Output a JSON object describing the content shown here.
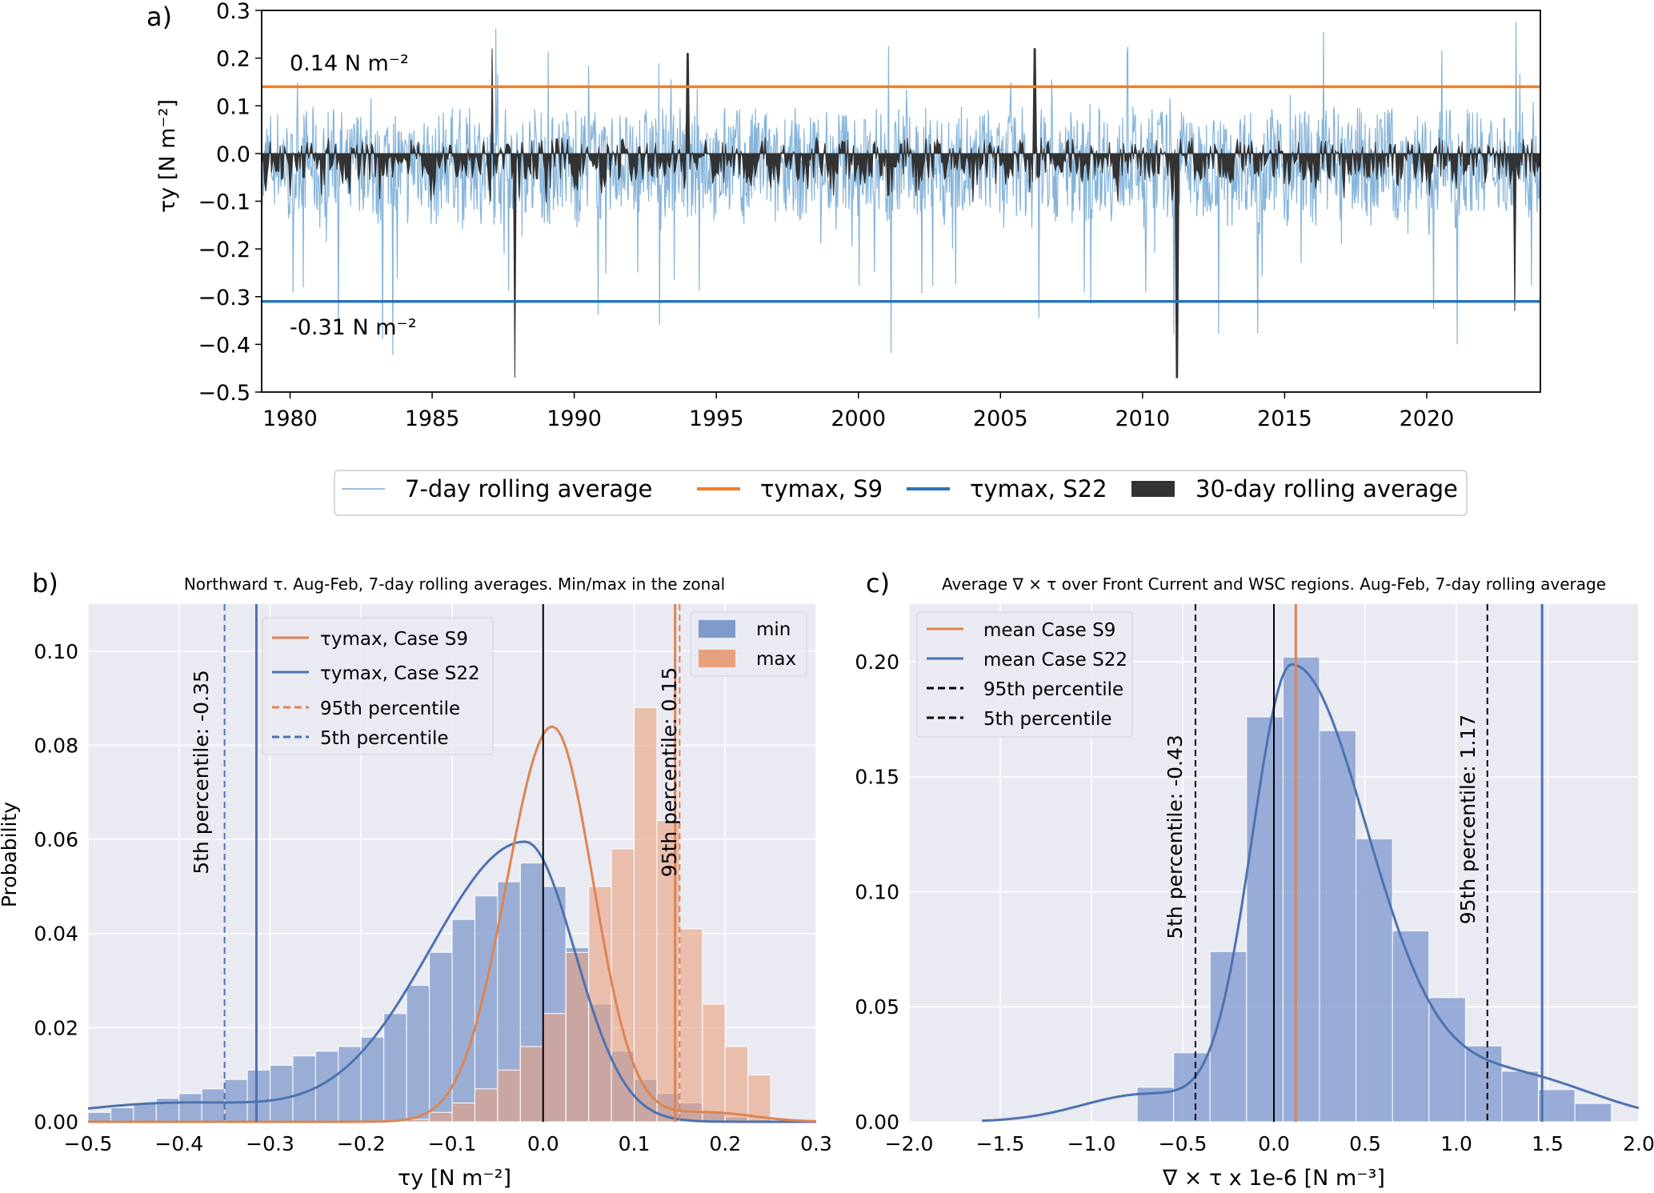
{
  "panel_labels": {
    "a": "a)",
    "b": "b)",
    "c": "c)"
  },
  "colors": {
    "rolling7": "#79acd6",
    "rolling30": "#333333",
    "s9": "#f07f27",
    "s22": "#2a74b4",
    "hist_min": "#7f9acb",
    "hist_max": "#e9a07e",
    "hist_c": "#8aa1d2",
    "kde_max": "#dd8452",
    "kde_min": "#4c72b0",
    "seaborn_bg": "#eaeaf2"
  },
  "chart_data": [
    {
      "id": "a",
      "type": "line",
      "ylabel": "τy [N m⁻²]",
      "xlim": [
        1979,
        2024
      ],
      "ylim": [
        -0.5,
        0.3
      ],
      "xticks": [
        "1980",
        "1985",
        "1990",
        "1995",
        "2000",
        "2005",
        "2010",
        "2015",
        "2020"
      ],
      "yticks": [
        "0.3",
        "0.2",
        "0.1",
        "0.0",
        "−0.1",
        "−0.2",
        "−0.3",
        "−0.4",
        "−0.5"
      ],
      "hlines": [
        {
          "name": "τymax, S9",
          "value": 0.14,
          "label": "0.14 N m⁻²"
        },
        {
          "name": "τymax, S22",
          "value": -0.31,
          "label": "-0.31 N m⁻²"
        }
      ],
      "series": [
        {
          "name": "7-day rolling average",
          "note": "dense daily series ranging roughly between -0.5 and 0.3"
        },
        {
          "name": "30-day rolling average",
          "extremes": [
            [
              1987.1,
              0.22
            ],
            [
              1987.9,
              -0.47
            ],
            [
              1994.0,
              0.21
            ],
            [
              2006.2,
              0.22
            ],
            [
              2011.2,
              -0.47
            ],
            [
              2023.1,
              -0.33
            ]
          ]
        }
      ],
      "legend": [
        "7-day rolling average",
        "τymax, S9",
        "τymax, S22",
        "30-day rolling average"
      ],
      "legend_position": "bottom-center"
    },
    {
      "id": "b",
      "type": "bar",
      "title": "Northward τ. Aug-Feb, 7-day rolling averages. Min/max in the zonal",
      "xlabel": "τy [N m⁻²]",
      "ylabel": "Probability",
      "xlim": [
        -0.5,
        0.3
      ],
      "ylim": [
        0,
        0.11
      ],
      "xticks": [
        "−0.5",
        "−0.4",
        "−0.3",
        "−0.2",
        "−0.1",
        "0.0",
        "0.1",
        "0.2",
        "0.3"
      ],
      "yticks": [
        "0.00",
        "0.02",
        "0.04",
        "0.06",
        "0.08",
        "0.10"
      ],
      "bin_edges": [
        -0.5,
        -0.475,
        -0.45,
        -0.425,
        -0.4,
        -0.375,
        -0.35,
        -0.325,
        -0.3,
        -0.275,
        -0.25,
        -0.225,
        -0.2,
        -0.175,
        -0.15,
        -0.125,
        -0.1,
        -0.075,
        -0.05,
        -0.025,
        0.0,
        0.025,
        0.05,
        0.075,
        0.1,
        0.125,
        0.15,
        0.175,
        0.2,
        0.225,
        0.25
      ],
      "series": [
        {
          "name": "min",
          "values": [
            0.002,
            0.003,
            0.004,
            0.005,
            0.006,
            0.007,
            0.009,
            0.011,
            0.012,
            0.014,
            0.015,
            0.016,
            0.018,
            0.023,
            0.029,
            0.036,
            0.043,
            0.048,
            0.051,
            0.055,
            0.05,
            0.037,
            0.025,
            0.015,
            0.009,
            0.006,
            0.004,
            0.002,
            0.001,
            0.0005
          ]
        },
        {
          "name": "max",
          "values": [
            0,
            0,
            0,
            0,
            0,
            0,
            0,
            0,
            0,
            0,
            0,
            0,
            0,
            0,
            0.0005,
            0.002,
            0.004,
            0.007,
            0.011,
            0.016,
            0.023,
            0.036,
            0.05,
            0.058,
            0.088,
            0.064,
            0.041,
            0.025,
            0.016,
            0.01
          ]
        }
      ],
      "kde": [
        {
          "name": "τymax, Case S9",
          "peak": [
            0.01,
            0.084
          ]
        },
        {
          "name": "τymax, Case S22",
          "peak": [
            -0.02,
            0.0595
          ]
        }
      ],
      "vlines": [
        {
          "name": "τymax, Case S9",
          "value": 0.145,
          "style": "solid"
        },
        {
          "name": "τymax, Case S22",
          "value": -0.315,
          "style": "solid"
        },
        {
          "name": "95th percentile",
          "value": 0.15,
          "style": "dashed",
          "label": "95th percentile: 0.15"
        },
        {
          "name": "5th percentile",
          "value": -0.35,
          "style": "dashed",
          "label": "5th percentile: -0.35"
        },
        {
          "name": "zero",
          "value": 0.0,
          "style": "solid"
        }
      ],
      "legend": [
        "τymax, Case S9",
        "τymax, Case S22",
        "95th percentile",
        "5th percentile",
        "min",
        "max"
      ]
    },
    {
      "id": "c",
      "type": "bar",
      "title": "Average ∇ × τ over Front Current and WSC regions. Aug-Feb, 7-day rolling average",
      "xlabel": "∇ × τ x 1e-6 [N m⁻³]",
      "ylabel": "",
      "xlim": [
        -2.0,
        2.0
      ],
      "ylim": [
        0,
        0.225
      ],
      "xticks": [
        "−2.0",
        "−1.5",
        "−1.0",
        "−0.5",
        "0.0",
        "0.5",
        "1.0",
        "1.5",
        "2.0"
      ],
      "yticks": [
        "0.00",
        "0.05",
        "0.10",
        "0.15",
        "0.20"
      ],
      "bin_edges": [
        -0.75,
        -0.55,
        -0.35,
        -0.15,
        0.05,
        0.25,
        0.45,
        0.65,
        0.85,
        1.05,
        1.25,
        1.45,
        1.65,
        1.85
      ],
      "values": [
        0.015,
        0.03,
        0.074,
        0.176,
        0.202,
        0.17,
        0.123,
        0.083,
        0.054,
        0.033,
        0.022,
        0.014,
        0.008
      ],
      "kde_peak": [
        0.1,
        0.198
      ],
      "vlines": [
        {
          "name": "mean Case S9",
          "value": 0.12,
          "style": "solid"
        },
        {
          "name": "mean Case S22",
          "value": 1.47,
          "style": "solid"
        },
        {
          "name": "95th percentile",
          "value": 1.17,
          "style": "dashed",
          "label": "95th percentile: 1.17"
        },
        {
          "name": "5th percentile",
          "value": -0.43,
          "style": "dashed",
          "label": "5th percentile: -0.43"
        },
        {
          "name": "zero",
          "value": 0.0,
          "style": "solid"
        }
      ],
      "legend": [
        "mean Case S9",
        "mean Case S22",
        "95th percentile",
        "5th percentile"
      ]
    }
  ]
}
